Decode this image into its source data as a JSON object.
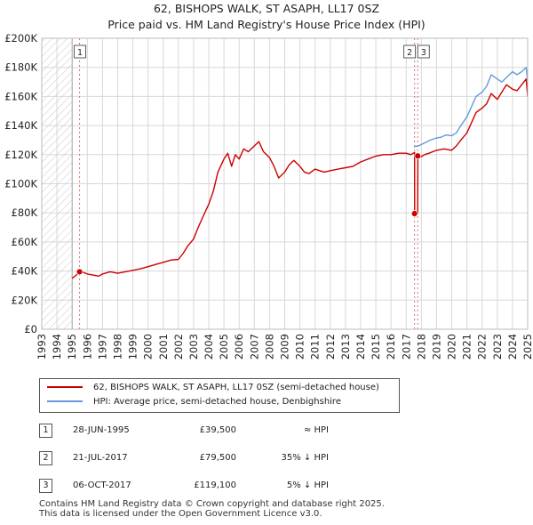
{
  "title": "62, BISHOPS WALK, ST ASAPH, LL17 0SZ",
  "subtitle": "Price paid vs. HM Land Registry's House Price Index (HPI)",
  "colors": {
    "price_paid": "#cc0000",
    "hpi": "#6699dd",
    "grid": "#d8d8d8",
    "hatch": "#cccccc"
  },
  "chart_data": {
    "type": "line",
    "title": "62, BISHOPS WALK, ST ASAPH, LL17 0SZ",
    "xlim": [
      1993,
      2025
    ],
    "ylim": [
      0,
      200000
    ],
    "x_ticks": [
      1993,
      1994,
      1995,
      1996,
      1997,
      1998,
      1999,
      2000,
      2001,
      2002,
      2003,
      2004,
      2005,
      2006,
      2007,
      2008,
      2009,
      2010,
      2011,
      2012,
      2013,
      2014,
      2015,
      2016,
      2017,
      2018,
      2019,
      2020,
      2021,
      2022,
      2023,
      2024,
      2025
    ],
    "y_ticks": [
      {
        "value": 0,
        "label": "£0"
      },
      {
        "value": 20000,
        "label": "£20K"
      },
      {
        "value": 40000,
        "label": "£40K"
      },
      {
        "value": 60000,
        "label": "£60K"
      },
      {
        "value": 80000,
        "label": "£80K"
      },
      {
        "value": 100000,
        "label": "£100K"
      },
      {
        "value": 120000,
        "label": "£120K"
      },
      {
        "value": 140000,
        "label": "£140K"
      },
      {
        "value": 160000,
        "label": "£160K"
      },
      {
        "value": 180000,
        "label": "£180K"
      },
      {
        "value": 200000,
        "label": "£200K"
      }
    ],
    "hatched_before": 1995.0,
    "series": [
      {
        "name": "62, BISHOPS WALK, ST ASAPH, LL17 0SZ (semi-detached house)",
        "color": "#cc0000",
        "x": [
          1995.0,
          1995.25,
          1995.5,
          1995.75,
          1996.0,
          1996.25,
          1996.5,
          1996.75,
          1997.0,
          1997.5,
          1998.0,
          1998.5,
          1999.0,
          1999.5,
          2000.0,
          2000.5,
          2001.0,
          2001.5,
          2002.0,
          2002.3,
          2002.6,
          2003.0,
          2003.3,
          2003.6,
          2004.0,
          2004.3,
          2004.6,
          2005.0,
          2005.25,
          2005.5,
          2005.75,
          2006.0,
          2006.3,
          2006.6,
          2007.0,
          2007.3,
          2007.6,
          2008.0,
          2008.3,
          2008.6,
          2009.0,
          2009.3,
          2009.6,
          2010.0,
          2010.3,
          2010.6,
          2011.0,
          2011.3,
          2011.6,
          2012.0,
          2012.5,
          2013.0,
          2013.5,
          2014.0,
          2014.5,
          2015.0,
          2015.5,
          2016.0,
          2016.5,
          2017.0,
          2017.3,
          2017.55,
          2017.56,
          2017.7,
          2017.76,
          2017.77,
          2017.9,
          2018.2,
          2018.5,
          2019.0,
          2019.5,
          2020.0,
          2020.3,
          2020.6,
          2021.0,
          2021.3,
          2021.6,
          2022.0,
          2022.3,
          2022.6,
          2023.0,
          2023.3,
          2023.6,
          2024.0,
          2024.3,
          2024.6,
          2024.9,
          2025.0
        ],
        "values": [
          35000,
          37000,
          39500,
          39000,
          38000,
          37500,
          37000,
          36500,
          38000,
          39500,
          38500,
          39500,
          40500,
          41500,
          43000,
          44500,
          46000,
          47500,
          48000,
          52000,
          57000,
          62000,
          70000,
          77000,
          86000,
          95000,
          108000,
          117000,
          121000,
          112000,
          120000,
          117000,
          124000,
          122000,
          126000,
          129000,
          122000,
          118000,
          112000,
          104000,
          108000,
          113000,
          116000,
          112000,
          108000,
          107000,
          110000,
          109000,
          108000,
          109000,
          110000,
          111000,
          112000,
          115000,
          117000,
          119000,
          120000,
          120000,
          121000,
          121000,
          120000,
          121500,
          79500,
          79500,
          79500,
          119100,
          118000,
          120000,
          121000,
          123000,
          124000,
          123000,
          126000,
          130000,
          135000,
          142000,
          149000,
          152000,
          155000,
          162000,
          158000,
          163000,
          168000,
          165000,
          164000,
          168000,
          172000,
          160000
        ]
      },
      {
        "name": "HPI: Average price, semi-detached house, Denbighshire",
        "color": "#6699dd",
        "x": [
          2017.5,
          2017.8,
          2018.0,
          2018.3,
          2018.6,
          2019.0,
          2019.3,
          2019.6,
          2020.0,
          2020.3,
          2020.6,
          2021.0,
          2021.3,
          2021.6,
          2022.0,
          2022.3,
          2022.6,
          2023.0,
          2023.3,
          2023.6,
          2024.0,
          2024.3,
          2024.6,
          2024.9,
          2025.0
        ],
        "values": [
          125500,
          126000,
          127000,
          128500,
          130000,
          131500,
          132000,
          133500,
          133000,
          135000,
          140000,
          146000,
          153000,
          160000,
          163000,
          167000,
          175000,
          172000,
          170000,
          173000,
          177000,
          175000,
          177000,
          180000,
          170000
        ]
      }
    ],
    "annotations": [
      {
        "label": "1",
        "x": 1995.49,
        "y": 39500
      },
      {
        "label": "2",
        "x": 2017.55,
        "y": 79500
      },
      {
        "label": "3",
        "x": 2017.76,
        "y": 119100
      }
    ]
  },
  "legend": {
    "entries": [
      {
        "label": "62, BISHOPS WALK, ST ASAPH, LL17 0SZ (semi-detached house)",
        "color": "#cc0000"
      },
      {
        "label": "HPI: Average price, semi-detached house, Denbighshire",
        "color": "#6699dd"
      }
    ]
  },
  "transactions": [
    {
      "num": "1",
      "date": "28-JUN-1995",
      "price": "£39,500",
      "hpi": "≈ HPI"
    },
    {
      "num": "2",
      "date": "21-JUL-2017",
      "price": "£79,500",
      "hpi": "35% ↓ HPI"
    },
    {
      "num": "3",
      "date": "06-OCT-2017",
      "price": "£119,100",
      "hpi": "5% ↓ HPI"
    }
  ],
  "footer": {
    "line1": "Contains HM Land Registry data © Crown copyright and database right 2025.",
    "line2": "This data is licensed under the Open Government Licence v3.0."
  }
}
